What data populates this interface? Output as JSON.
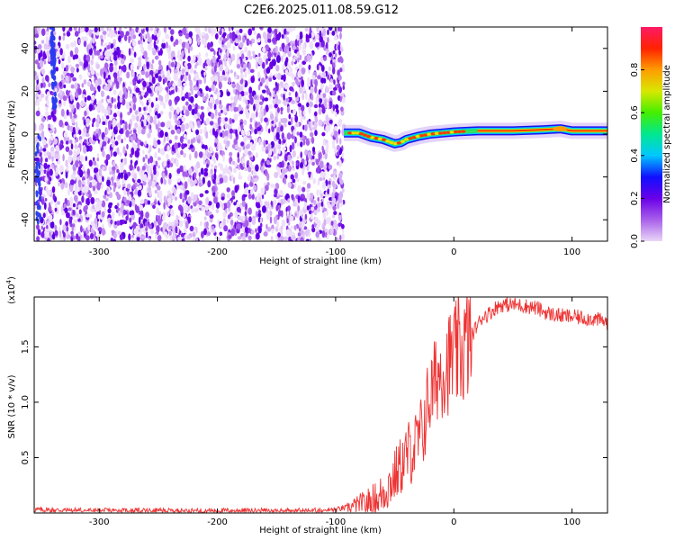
{
  "title": "C2E6.2025.011.08.59.G12",
  "chart_data": [
    {
      "type": "heatmap",
      "xlabel": "Height of straight line (km)",
      "ylabel": "Frequency (Hz)",
      "xlim": [
        -355,
        130
      ],
      "ylim": [
        -50,
        50
      ],
      "xticks": [
        -300,
        -200,
        -100,
        0,
        100
      ],
      "yticks": [
        -40,
        -20,
        0,
        20,
        40
      ],
      "noise_region_x": [
        -355,
        -93
      ],
      "signal_track": [
        {
          "x": -93,
          "y": 0.5
        },
        {
          "x": -80,
          "y": 0.5
        },
        {
          "x": -70,
          "y": -1.5
        },
        {
          "x": -60,
          "y": -2.5
        },
        {
          "x": -50,
          "y": -4.5
        },
        {
          "x": -45,
          "y": -4.0
        },
        {
          "x": -40,
          "y": -2.5
        },
        {
          "x": -30,
          "y": -1.0
        },
        {
          "x": -20,
          "y": 0.0
        },
        {
          "x": -10,
          "y": 0.5
        },
        {
          "x": 0,
          "y": 1.0
        },
        {
          "x": 20,
          "y": 1.5
        },
        {
          "x": 50,
          "y": 1.5
        },
        {
          "x": 75,
          "y": 2.0
        },
        {
          "x": 90,
          "y": 2.5
        },
        {
          "x": 100,
          "y": 1.5
        },
        {
          "x": 130,
          "y": 1.5
        }
      ],
      "colorbar": {
        "label": "Normalized spectral amplitude",
        "range": [
          0,
          1
        ],
        "ticks": [
          "0.0",
          "0.2",
          "0.4",
          "0.6",
          "0.8"
        ],
        "colors": [
          "#e9d6f6",
          "#a860ea",
          "#6a00e8",
          "#1010ff",
          "#00c8ff",
          "#00e890",
          "#44ee00",
          "#d8e800",
          "#ff9d00",
          "#ff2200",
          "#ff1a66"
        ]
      }
    },
    {
      "type": "line",
      "xlabel": "Height of straight line (km)",
      "ylabel": "SNR (10 * v/v)",
      "y_multiplier": "(x10",
      "y_multiplier_exp": "4",
      "y_multiplier_close": ")",
      "xlim": [
        -355,
        130
      ],
      "ylim": [
        0,
        1.95
      ],
      "xticks": [
        -300,
        -200,
        -100,
        0,
        100
      ],
      "yticks": [
        "0.5",
        "1.0",
        "1.5"
      ],
      "color": "#ee3333",
      "x": [
        -355,
        -300,
        -200,
        -120,
        -100,
        -80,
        -65,
        -55,
        -45,
        -38,
        -32,
        -26,
        -22,
        -18,
        -14,
        -10,
        -5,
        0,
        5,
        10,
        15,
        20,
        25,
        30,
        35,
        40,
        50,
        60,
        70,
        80,
        90,
        100,
        110,
        120,
        130
      ],
      "values": [
        0.03,
        0.02,
        0.02,
        0.02,
        0.03,
        0.07,
        0.12,
        0.25,
        0.42,
        0.55,
        0.6,
        0.75,
        1.0,
        1.1,
        1.25,
        1.3,
        1.35,
        1.4,
        1.45,
        1.5,
        1.6,
        1.7,
        1.78,
        1.8,
        1.85,
        1.88,
        1.88,
        1.87,
        1.85,
        1.8,
        1.78,
        1.77,
        1.76,
        1.75,
        1.72
      ]
    }
  ]
}
